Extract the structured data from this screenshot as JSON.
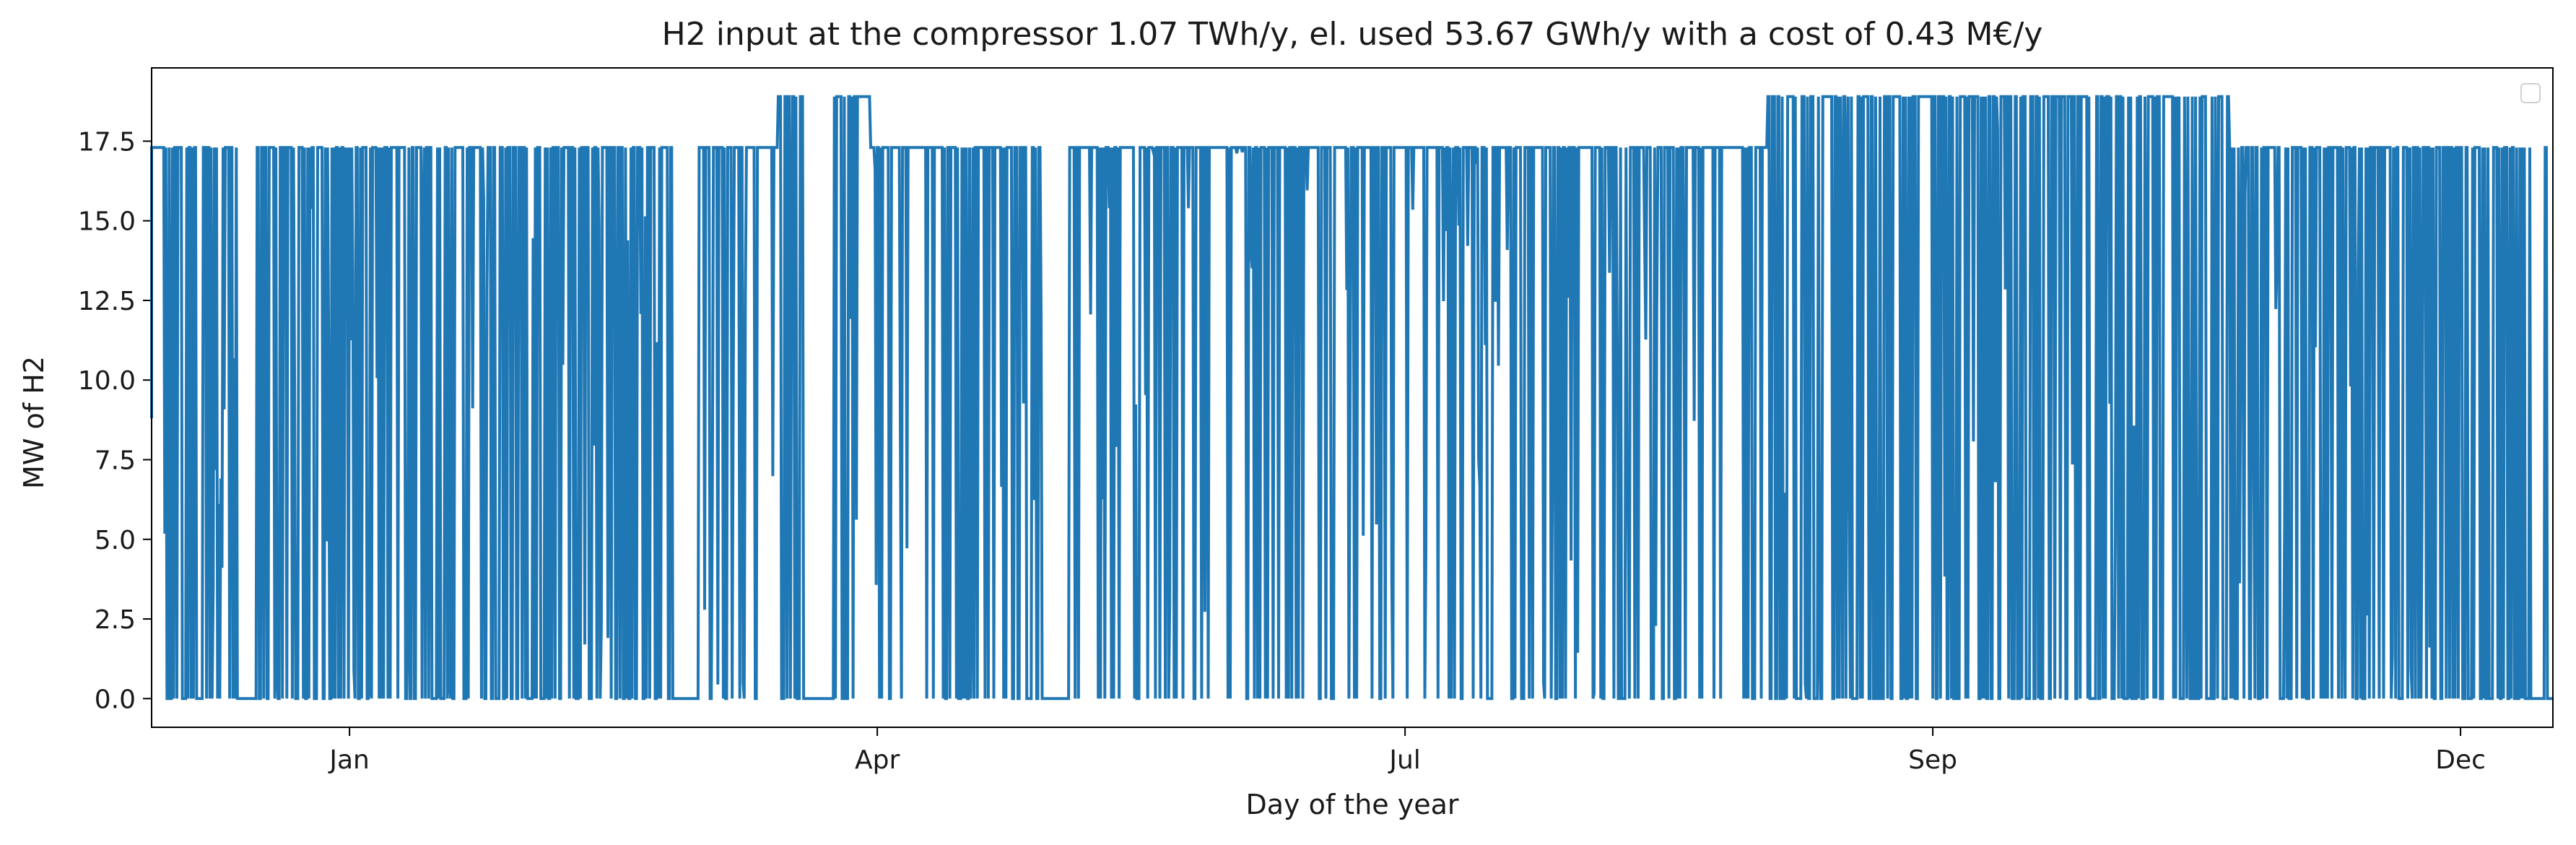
{
  "chart_data": {
    "type": "line",
    "title": "H2 input at the compressor 1.07 TWh/y, el. used 53.67 GWh/y with a cost of 0.43 M€/y",
    "xlabel": "Day of the year",
    "ylabel": "MW of H2",
    "xlim": [
      1,
      365
    ],
    "ylim": [
      -0.9,
      19.8
    ],
    "grid": false,
    "legend": {
      "placement": "top-right",
      "entries": []
    },
    "x_ticks": [
      {
        "day": 31,
        "label": "Jan"
      },
      {
        "day": 111,
        "label": "Apr"
      },
      {
        "day": 191,
        "label": "Jul"
      },
      {
        "day": 271,
        "label": "Sep"
      },
      {
        "day": 351,
        "label": "Dec"
      }
    ],
    "y_ticks": [
      "0.0",
      "2.5",
      "5.0",
      "7.5",
      "10.0",
      "12.5",
      "15.0",
      "17.5"
    ],
    "series": [
      {
        "color": "#1f77b4",
        "sampling": "hourly, shown as approximate on/off operating periods",
        "levels_MW": [
          0,
          17.3,
          18.9
        ],
        "segments": [
          {
            "from_day": 1,
            "to_day": 3,
            "level_MW": 17.3
          },
          {
            "from_day": 3,
            "to_day": 14,
            "level_MW": 17.3,
            "pattern": "intermittent"
          },
          {
            "from_day": 14,
            "to_day": 17,
            "level_MW": 0
          },
          {
            "from_day": 17,
            "to_day": 30,
            "level_MW": 17.3,
            "pattern": "intermittent"
          },
          {
            "from_day": 30,
            "to_day": 44,
            "level_MW": 17.3,
            "pattern": "intermittent"
          },
          {
            "from_day": 44,
            "to_day": 80,
            "level_MW": 17.3,
            "pattern": "intermittent"
          },
          {
            "from_day": 80,
            "to_day": 84,
            "level_MW": 0
          },
          {
            "from_day": 84,
            "to_day": 96,
            "level_MW": 17.3,
            "pattern": "dense"
          },
          {
            "from_day": 96,
            "to_day": 100,
            "level_MW": 18.9,
            "pattern": "intermittent"
          },
          {
            "from_day": 100,
            "to_day": 104,
            "level_MW": 0
          },
          {
            "from_day": 104,
            "to_day": 110,
            "level_MW": 18.9,
            "pattern": "intermittent"
          },
          {
            "from_day": 110,
            "to_day": 136,
            "level_MW": 17.3,
            "pattern": "dense"
          },
          {
            "from_day": 136,
            "to_day": 140,
            "level_MW": 0
          },
          {
            "from_day": 140,
            "to_day": 246,
            "level_MW": 17.3,
            "pattern": "dense"
          },
          {
            "from_day": 246,
            "to_day": 276,
            "level_MW": 18.9,
            "pattern": "intermittent"
          },
          {
            "from_day": 276,
            "to_day": 316,
            "level_MW": 18.9,
            "pattern": "intermittent"
          },
          {
            "from_day": 316,
            "to_day": 357,
            "level_MW": 17.3,
            "pattern": "intermittent"
          },
          {
            "from_day": 357,
            "to_day": 365,
            "level_MW": 17.3,
            "pattern": "sparse"
          }
        ]
      }
    ]
  }
}
